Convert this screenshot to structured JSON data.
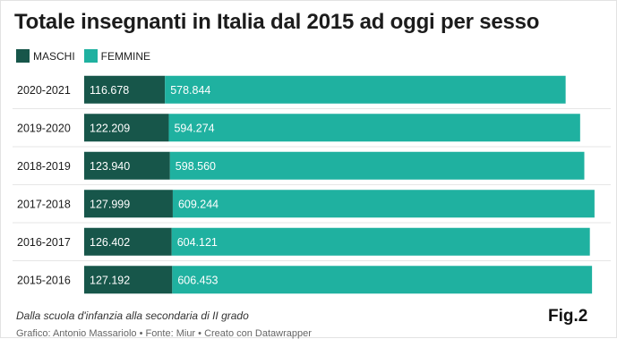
{
  "chart_data": {
    "type": "bar",
    "orientation": "horizontal",
    "stacked": true,
    "title": "Totale insegnanti in Italia dal 2015 ad oggi per sesso",
    "categories": [
      "2020-2021",
      "2019-2020",
      "2018-2019",
      "2017-2018",
      "2016-2017",
      "2015-2016"
    ],
    "series": [
      {
        "name": "MASCHI",
        "color": "#17564a",
        "values": [
          116678,
          122209,
          123940,
          127999,
          126402,
          127192
        ],
        "labels": [
          "116.678",
          "122.209",
          "123.940",
          "127.999",
          "126.402",
          "127.192"
        ]
      },
      {
        "name": "FEMMINE",
        "color": "#1fb1a0",
        "values": [
          578844,
          594274,
          598560,
          609244,
          604121,
          606453
        ],
        "labels": [
          "578.844",
          "594.274",
          "598.560",
          "609.244",
          "604.121",
          "606.453"
        ]
      }
    ],
    "legend_position": "top-left",
    "grid": false
  },
  "footer": {
    "note": "Dalla scuola d'infanzia alla secondaria di II grado",
    "credit": "Grafico: Antonio Massariolo • Fonte: Miur • Creato con Datawrapper",
    "fig_label": "Fig.2"
  }
}
